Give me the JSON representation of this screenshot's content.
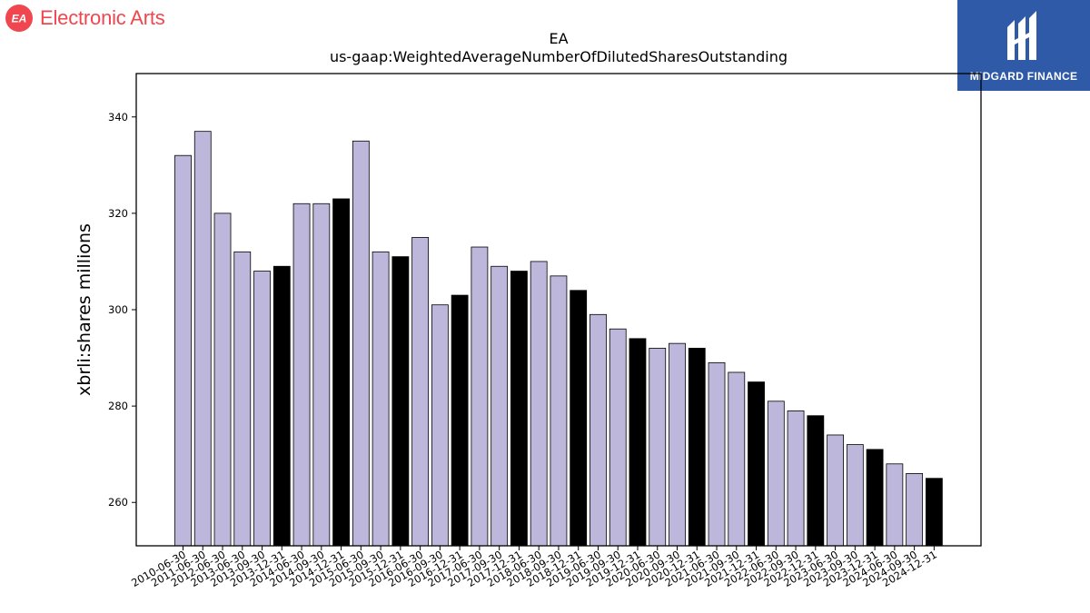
{
  "brand": {
    "name": "Electronic Arts",
    "logo_text": "EA",
    "color": "#f0464f"
  },
  "partner": {
    "name": "MIDGARD FINANCE",
    "background": "#2e5aa8"
  },
  "chart_data": {
    "type": "bar",
    "title": "EA",
    "subtitle": "us-gaap:WeightedAverageNumberOfDilutedSharesOutstanding",
    "xlabel": "",
    "ylabel": "xbrli:shares millions",
    "ylim": [
      251,
      349
    ],
    "yticks": [
      260,
      280,
      300,
      320,
      340
    ],
    "grid": false,
    "colors": {
      "fiscal_year_end": "#000000",
      "quarter": "#bdb8db",
      "edge": "#000000"
    },
    "categories": [
      "2010-06-30",
      "2011-06-30",
      "2012-06-30",
      "2013-06-30",
      "2013-09-30",
      "2013-12-31",
      "2014-06-30",
      "2014-09-30",
      "2014-12-31",
      "2015-06-30",
      "2015-09-30",
      "2015-12-31",
      "2016-06-30",
      "2016-09-30",
      "2016-12-31",
      "2017-06-30",
      "2017-09-30",
      "2017-12-31",
      "2018-06-30",
      "2018-09-30",
      "2018-12-31",
      "2019-06-30",
      "2019-09-30",
      "2019-12-31",
      "2020-06-30",
      "2020-09-30",
      "2020-12-31",
      "2021-06-30",
      "2021-09-30",
      "2021-12-31",
      "2022-06-30",
      "2022-09-30",
      "2022-12-31",
      "2023-06-30",
      "2023-09-30",
      "2023-12-31",
      "2024-06-30",
      "2024-09-30",
      "2024-12-31"
    ],
    "values": [
      332,
      337,
      320,
      312,
      308,
      309,
      322,
      322,
      323,
      335,
      312,
      311,
      315,
      301,
      303,
      313,
      309,
      308,
      310,
      307,
      304,
      299,
      296,
      294,
      292,
      293,
      292,
      289,
      287,
      285,
      281,
      279,
      278,
      274,
      272,
      271,
      268,
      266,
      265
    ],
    "highlight": [
      false,
      false,
      false,
      false,
      false,
      true,
      false,
      false,
      true,
      false,
      false,
      true,
      false,
      false,
      true,
      false,
      false,
      true,
      false,
      false,
      true,
      false,
      false,
      true,
      false,
      false,
      true,
      false,
      false,
      true,
      false,
      false,
      true,
      false,
      false,
      true,
      false,
      false,
      true
    ]
  }
}
